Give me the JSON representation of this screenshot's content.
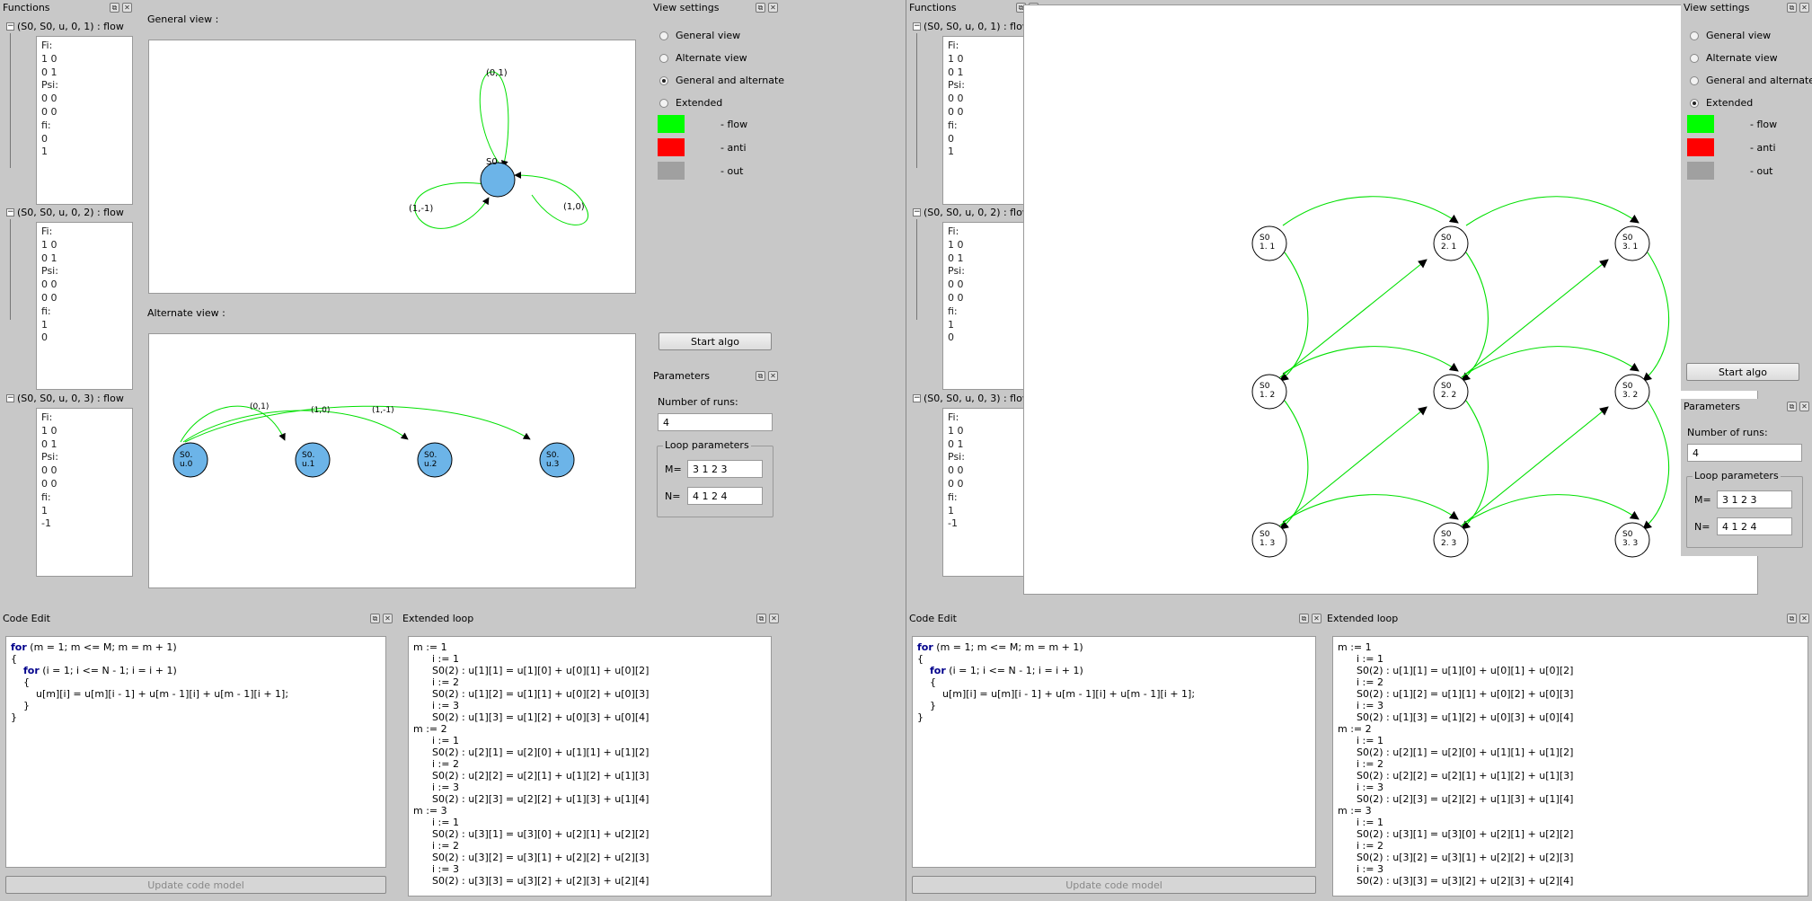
{
  "functions_title": "Functions",
  "functions": [
    {
      "header": "(S0, S0, u, 0, 1) : flow",
      "lines": [
        "Fi:",
        "1 0",
        "0 1",
        "Psi:",
        "0 0",
        "0 0",
        "fi:",
        "0",
        "1"
      ]
    },
    {
      "header": "(S0, S0, u, 0, 2) : flow",
      "lines": [
        "Fi:",
        "1 0",
        "0 1",
        "Psi:",
        "0 0",
        "0 0",
        "fi:",
        "1",
        "0"
      ]
    },
    {
      "header": "(S0, S0, u, 0, 3) : flow",
      "lines": [
        "Fi:",
        "1 0",
        "0 1",
        "Psi:",
        "0 0",
        "0 0",
        "fi:",
        "1",
        "-1"
      ]
    }
  ],
  "general_view": {
    "label": "General view :",
    "node": "S0",
    "loops": [
      "(0,1)",
      "(1,-1)",
      "(1,0)"
    ]
  },
  "alternate_view": {
    "label": "Alternate view :",
    "nodes": [
      [
        "S0.",
        "u.0"
      ],
      [
        "S0.",
        "u.1"
      ],
      [
        "S0.",
        "u.2"
      ],
      [
        "S0.",
        "u.3"
      ]
    ],
    "edge_labels": [
      "(0,1)",
      "(1,0)",
      "(1,-1)"
    ]
  },
  "view_settings": {
    "title": "View settings",
    "options": [
      "General view",
      "Alternate view",
      "General and alternate",
      "Extended"
    ],
    "selected_left": 2,
    "selected_right": 3,
    "legend": [
      {
        "color": "#00ff00",
        "label": "- flow"
      },
      {
        "color": "#ff0000",
        "label": "- anti"
      },
      {
        "color": "#a0a0a0",
        "label": "- out"
      }
    ],
    "start_label": "Start algo"
  },
  "parameters": {
    "title": "Parameters",
    "runs_label": "Number of runs:",
    "runs_value": "4",
    "loop_title": "Loop parameters",
    "m_label": "M=",
    "m_value": "3 1 2 3",
    "n_label": "N=",
    "n_value": "4 1 2 4"
  },
  "code_edit": {
    "title": "Code Edit",
    "lines": [
      [
        {
          "t": "for",
          "k": 1
        },
        {
          "t": " (m = 1; m <= M; m = m + 1)"
        }
      ],
      [
        {
          "t": "{"
        }
      ],
      [
        {
          "t": "    "
        },
        {
          "t": "for",
          "k": 1
        },
        {
          "t": " (i = 1; i <= N - 1; i = i + 1)"
        }
      ],
      [
        {
          "t": "    {"
        }
      ],
      [
        {
          "t": "        u[m][i] = u[m][i - 1] + u[m - 1][i] + u[m - 1][i + 1];"
        }
      ],
      [
        {
          "t": "    }"
        }
      ],
      [
        {
          "t": "}"
        }
      ]
    ],
    "update_label": "Update code model"
  },
  "extended_loop": {
    "title": "Extended loop",
    "lines": [
      "m := 1",
      "      i := 1",
      "      S0(2) : u[1][1] = u[1][0] + u[0][1] + u[0][2]",
      "      i := 2",
      "      S0(2) : u[1][2] = u[1][1] + u[0][2] + u[0][3]",
      "      i := 3",
      "      S0(2) : u[1][3] = u[1][2] + u[0][3] + u[0][4]",
      "m := 2",
      "      i := 1",
      "      S0(2) : u[2][1] = u[2][0] + u[1][1] + u[1][2]",
      "      i := 2",
      "      S0(2) : u[2][2] = u[2][1] + u[1][2] + u[1][3]",
      "      i := 3",
      "      S0(2) : u[2][3] = u[2][2] + u[1][3] + u[1][4]",
      "m := 3",
      "      i := 1",
      "      S0(2) : u[3][1] = u[3][0] + u[2][1] + u[2][2]",
      "      i := 2",
      "      S0(2) : u[3][2] = u[3][1] + u[2][2] + u[2][3]",
      "      i := 3",
      "      S0(2) : u[3][3] = u[3][2] + u[2][3] + u[2][4]"
    ]
  },
  "extended_view": {
    "nodes": [
      [
        "S0",
        "1. 1"
      ],
      [
        "S0",
        "2. 1"
      ],
      [
        "S0",
        "3. 1"
      ],
      [
        "S0",
        "1. 2"
      ],
      [
        "S0",
        "2. 2"
      ],
      [
        "S0",
        "3. 2"
      ],
      [
        "S0",
        "1. 3"
      ],
      [
        "S0",
        "2. 3"
      ],
      [
        "S0",
        "3. 3"
      ]
    ]
  },
  "dock_buttons": {
    "float": "⧉",
    "close": "✕"
  }
}
